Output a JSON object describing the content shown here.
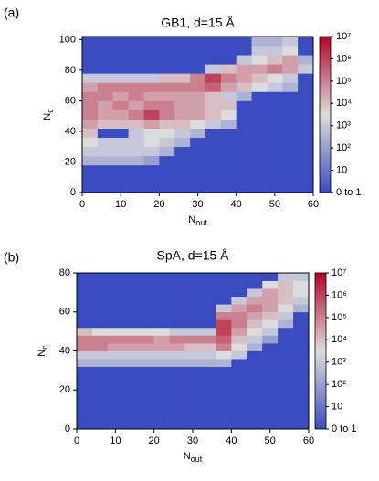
{
  "chart_data": [
    {
      "type": "heatmap",
      "panel_label": "(a)",
      "title": "GB1, d=15 Å",
      "xlabel": {
        "text": "N",
        "sub": "out"
      },
      "ylabel": {
        "text": "N",
        "sub": "c"
      },
      "x": [
        0,
        4,
        8,
        12,
        16,
        20,
        24,
        28,
        32,
        36,
        40,
        44,
        48,
        52,
        56,
        60
      ],
      "y": [
        0,
        6,
        12,
        18,
        24,
        30,
        36,
        42,
        48,
        54,
        60,
        66,
        72,
        78,
        84,
        90,
        96,
        102
      ],
      "z": [
        [
          0,
          0,
          0,
          0,
          0,
          0,
          0,
          0,
          0,
          0,
          0,
          0,
          0,
          0,
          0
        ],
        [
          0,
          0,
          0,
          0,
          0,
          0,
          0,
          0,
          0,
          0,
          0,
          0,
          0,
          0,
          0
        ],
        [
          0,
          0,
          0,
          0,
          0,
          0,
          0,
          0,
          0,
          0,
          0,
          0,
          0,
          0,
          0
        ],
        [
          300,
          300,
          300,
          300,
          100,
          0,
          0,
          0,
          0,
          0,
          0,
          0,
          0,
          0,
          0
        ],
        [
          1000.0,
          1000.0,
          1000.0,
          1000.0,
          1000.0,
          300,
          0,
          0,
          0,
          0,
          0,
          0,
          0,
          0,
          0
        ],
        [
          3000.0,
          1000.0,
          1000.0,
          1000.0,
          3000.0,
          1000.0,
          300,
          0,
          0,
          0,
          0,
          0,
          0,
          0,
          0
        ],
        [
          10000.0,
          0,
          0,
          1000.0,
          3000.0,
          3000.0,
          1000.0,
          300,
          0,
          0,
          0,
          0,
          0,
          0,
          0
        ],
        [
          30000.0,
          10000.0,
          10000.0,
          10000.0,
          30000.0,
          10000.0,
          10000.0,
          3000.0,
          1000.0,
          300,
          0,
          0,
          0,
          0,
          0
        ],
        [
          100000.0,
          30000.0,
          30000.0,
          100000.0,
          1000000.0,
          100000.0,
          30000.0,
          30000.0,
          10000.0,
          3000.0,
          0,
          0,
          0,
          0,
          0
        ],
        [
          100000.0,
          30000.0,
          100000.0,
          30000.0,
          100000.0,
          100000.0,
          30000.0,
          30000.0,
          10000.0,
          10000.0,
          0,
          0,
          0,
          0,
          0
        ],
        [
          100000.0,
          100000.0,
          30000.0,
          100000.0,
          30000.0,
          30000.0,
          30000.0,
          30000.0,
          10000.0,
          1000.0,
          300,
          0,
          0,
          0,
          0
        ],
        [
          30000.0,
          100000.0,
          100000.0,
          100000.0,
          100000.0,
          100000.0,
          100000.0,
          100000.0,
          300000.0,
          30000.0,
          10000.0,
          3000.0,
          1000.0,
          300,
          0
        ],
        [
          1000.0,
          1000.0,
          1000.0,
          1000.0,
          1000.0,
          10000.0,
          10000.0,
          100000.0,
          1000000.0,
          100000.0,
          30000.0,
          10000.0,
          3000.0,
          1000.0,
          0
        ],
        [
          0,
          0,
          0,
          0,
          0,
          0,
          0,
          0,
          1000.0,
          10000.0,
          30000.0,
          30000.0,
          100000.0,
          30000.0,
          1000.0
        ],
        [
          0,
          0,
          0,
          0,
          0,
          0,
          0,
          0,
          0,
          0,
          1000.0,
          3000.0,
          10000.0,
          30000.0,
          300
        ],
        [
          0,
          0,
          0,
          0,
          0,
          0,
          0,
          0,
          0,
          0,
          0,
          1000.0,
          1000.0,
          3000.0,
          0
        ],
        [
          0,
          0,
          0,
          0,
          0,
          0,
          0,
          0,
          0,
          0,
          0,
          300,
          300,
          1000.0,
          0
        ]
      ],
      "xlim": [
        0,
        60
      ],
      "ylim": [
        0,
        102
      ],
      "xticks": [
        0,
        10,
        20,
        30,
        40,
        50,
        60
      ],
      "yticks": [
        0,
        20,
        40,
        60,
        80,
        100
      ],
      "zscale": "log",
      "clim": [
        1,
        10000000.0
      ],
      "colormap": [
        "#3b4cc0",
        "#dddddd",
        "#b40426"
      ],
      "cticks": [
        {
          "value": 1,
          "label": "0 to 1"
        },
        {
          "value": 10,
          "label": "10"
        },
        {
          "value": 100,
          "label": "10²"
        },
        {
          "value": 1000,
          "label": "10³"
        },
        {
          "value": 10000,
          "label": "10⁴"
        },
        {
          "value": 100000,
          "label": "10⁵"
        },
        {
          "value": 1000000,
          "label": "10⁶"
        },
        {
          "value": 10000000,
          "label": "10⁷"
        }
      ]
    },
    {
      "type": "heatmap",
      "panel_label": "(b)",
      "title": "SpA, d=15 Å",
      "xlabel": {
        "text": "N",
        "sub": "out"
      },
      "ylabel": {
        "text": "N",
        "sub": "c"
      },
      "x": [
        0,
        4,
        8,
        12,
        16,
        20,
        24,
        28,
        32,
        36,
        40,
        44,
        48,
        52,
        56,
        60
      ],
      "y": [
        0,
        4,
        8,
        12,
        16,
        20,
        24,
        28,
        32,
        36,
        40,
        44,
        48,
        52,
        56,
        60,
        64,
        68,
        72,
        76,
        80
      ],
      "z": [
        [
          0,
          0,
          0,
          0,
          0,
          0,
          0,
          0,
          0,
          0,
          0,
          0,
          0,
          0,
          0
        ],
        [
          0,
          0,
          0,
          0,
          0,
          0,
          0,
          0,
          0,
          0,
          0,
          0,
          0,
          0,
          0
        ],
        [
          0,
          0,
          0,
          0,
          0,
          0,
          0,
          0,
          0,
          0,
          0,
          0,
          0,
          0,
          0
        ],
        [
          0,
          0,
          0,
          0,
          0,
          0,
          0,
          0,
          0,
          0,
          0,
          0,
          0,
          0,
          0
        ],
        [
          0,
          0,
          0,
          0,
          0,
          0,
          0,
          0,
          0,
          0,
          0,
          0,
          0,
          0,
          0
        ],
        [
          0,
          0,
          0,
          0,
          0,
          0,
          0,
          0,
          0,
          0,
          0,
          0,
          0,
          0,
          0
        ],
        [
          0,
          0,
          0,
          0,
          0,
          0,
          0,
          0,
          0,
          0,
          0,
          0,
          0,
          0,
          0
        ],
        [
          0,
          0,
          0,
          0,
          0,
          0,
          0,
          0,
          0,
          0,
          0,
          0,
          0,
          0,
          0
        ],
        [
          300,
          300,
          300,
          300,
          300,
          300,
          300,
          300,
          300,
          300,
          0,
          0,
          0,
          0,
          0
        ],
        [
          1000.0,
          1000.0,
          1000.0,
          1000.0,
          1000.0,
          1000.0,
          1000.0,
          1000.0,
          1000.0,
          3000.0,
          1000.0,
          0,
          0,
          0,
          0
        ],
        [
          100000.0,
          100000.0,
          30000.0,
          30000.0,
          30000.0,
          30000.0,
          30000.0,
          10000.0,
          10000.0,
          100000.0,
          3000.0,
          300,
          0,
          0,
          0
        ],
        [
          100000.0,
          100000.0,
          100000.0,
          100000.0,
          100000.0,
          30000.0,
          100000.0,
          100000.0,
          100000.0,
          300000.0,
          10000.0,
          1000.0,
          100,
          0,
          0
        ],
        [
          10000.0,
          3000.0,
          3000.0,
          3000.0,
          3000.0,
          3000.0,
          1000.0,
          1000.0,
          1000.0,
          1000000.0,
          30000.0,
          3000.0,
          1000.0,
          0,
          0
        ],
        [
          0,
          0,
          0,
          0,
          0,
          0,
          0,
          0,
          0,
          1000000.0,
          100000.0,
          10000.0,
          3000.0,
          300,
          0
        ],
        [
          0,
          0,
          0,
          0,
          0,
          0,
          0,
          0,
          0,
          100000.0,
          100000.0,
          30000.0,
          10000.0,
          1000.0,
          0
        ],
        [
          0,
          0,
          0,
          0,
          0,
          0,
          0,
          0,
          0,
          1000.0,
          30000.0,
          100000.0,
          30000.0,
          3000.0,
          300
        ],
        [
          0,
          0,
          0,
          0,
          0,
          0,
          0,
          0,
          0,
          0,
          1000.0,
          30000.0,
          30000.0,
          10000.0,
          1000.0
        ],
        [
          0,
          0,
          0,
          0,
          0,
          0,
          0,
          0,
          0,
          0,
          0,
          1000.0,
          30000.0,
          10000.0,
          3000.0
        ],
        [
          0,
          0,
          0,
          0,
          0,
          0,
          0,
          0,
          0,
          0,
          0,
          0,
          3000.0,
          10000.0,
          3000.0
        ],
        [
          0,
          0,
          0,
          0,
          0,
          0,
          0,
          0,
          0,
          0,
          0,
          0,
          0,
          1000.0,
          1000.0
        ]
      ],
      "xlim": [
        0,
        60
      ],
      "ylim": [
        0,
        80
      ],
      "xticks": [
        0,
        10,
        20,
        30,
        40,
        50,
        60
      ],
      "yticks": [
        0,
        20,
        40,
        60,
        80
      ],
      "zscale": "log",
      "clim": [
        1,
        10000000.0
      ],
      "colormap": [
        "#3b4cc0",
        "#dddddd",
        "#b40426"
      ],
      "cticks": [
        {
          "value": 1,
          "label": "0 to 1"
        },
        {
          "value": 10,
          "label": "10"
        },
        {
          "value": 100,
          "label": "10²"
        },
        {
          "value": 1000,
          "label": "10³"
        },
        {
          "value": 10000,
          "label": "10⁴"
        },
        {
          "value": 100000,
          "label": "10⁵"
        },
        {
          "value": 1000000,
          "label": "10⁶"
        },
        {
          "value": 10000000,
          "label": "10⁷"
        }
      ]
    }
  ]
}
